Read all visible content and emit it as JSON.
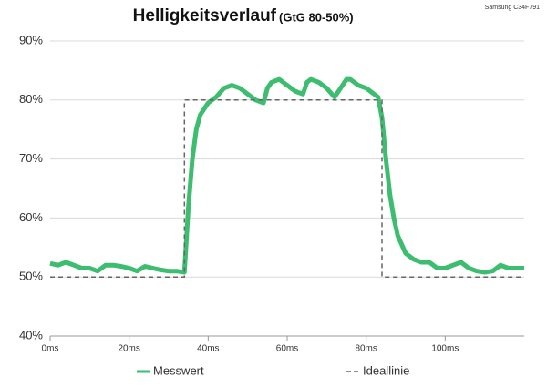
{
  "chart_data": {
    "type": "line",
    "title": "Helligkeitsverlauf",
    "subtitle": "(GtG 80-50%)",
    "annotation": "Samsung C34F791",
    "xlim": [
      0,
      120
    ],
    "xticks": [
      {
        "value": 0,
        "label": "0ms"
      },
      {
        "value": 20,
        "label": "20ms"
      },
      {
        "value": 40,
        "label": "40ms"
      },
      {
        "value": 60,
        "label": "60ms"
      },
      {
        "value": 80,
        "label": "80ms"
      },
      {
        "value": 100,
        "label": "100ms"
      }
    ],
    "ylim": [
      40,
      90
    ],
    "yticks": [
      {
        "value": 40,
        "label": "40%"
      },
      {
        "value": 50,
        "label": "50%"
      },
      {
        "value": 60,
        "label": "60%"
      },
      {
        "value": 70,
        "label": "70%"
      },
      {
        "value": 80,
        "label": "80%"
      },
      {
        "value": 90,
        "label": "90%"
      }
    ],
    "grid": true,
    "series": [
      {
        "name": "Messwert",
        "color": "#3dbd6f",
        "style": "solid",
        "x": [
          0,
          2,
          4,
          6,
          8,
          10,
          12,
          14,
          16,
          18,
          20,
          22,
          24,
          26,
          28,
          30,
          32,
          34,
          35,
          36,
          37,
          38,
          40,
          42,
          44,
          46,
          48,
          50,
          52,
          54,
          55,
          56,
          58,
          60,
          62,
          64,
          65,
          66,
          68,
          70,
          72,
          74,
          75,
          76,
          78,
          80,
          82,
          83,
          84,
          85,
          86,
          87,
          88,
          90,
          92,
          94,
          96,
          98,
          100,
          102,
          104,
          106,
          108,
          110,
          112,
          114,
          116,
          118,
          120
        ],
        "values": [
          52.3,
          52,
          52.5,
          52,
          51.5,
          51.5,
          51,
          52,
          52,
          51.8,
          51.5,
          51,
          51.8,
          51.5,
          51.2,
          51,
          51,
          50.8,
          62,
          70,
          75,
          77.5,
          79.5,
          80.5,
          82,
          82.5,
          82,
          81,
          80,
          79.5,
          82,
          83,
          83.5,
          82.5,
          81.5,
          81,
          83,
          83.5,
          83,
          82,
          80.5,
          82.5,
          83.5,
          83.5,
          82.5,
          82,
          81,
          80.5,
          77,
          70,
          64,
          60,
          57,
          54,
          53,
          52.5,
          52.5,
          51.5,
          51.5,
          52,
          52.5,
          51.5,
          51,
          50.8,
          51,
          52,
          51.5,
          51.5,
          51.5
        ]
      },
      {
        "name": "Ideallinie",
        "color": "#666666",
        "style": "dashed",
        "x": [
          0,
          34,
          34,
          84,
          84,
          120
        ],
        "values": [
          50,
          50,
          80,
          80,
          50,
          50
        ]
      }
    ]
  }
}
